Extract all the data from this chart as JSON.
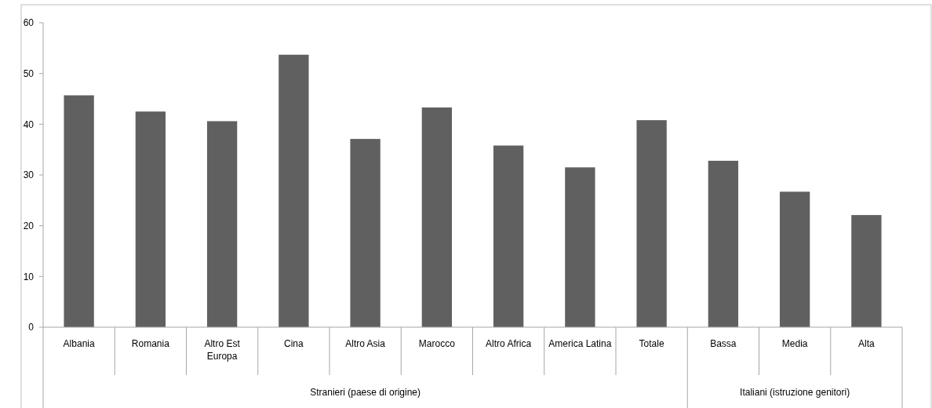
{
  "chart_data": {
    "type": "bar",
    "categories": [
      "Albania",
      "Romania",
      "Altro Est Europa",
      "Cina",
      "Altro Asia",
      "Marocco",
      "Altro Africa",
      "America Latina",
      "Totale",
      "Bassa",
      "Media",
      "Alta"
    ],
    "values": [
      45.7,
      42.5,
      40.6,
      53.7,
      37.1,
      43.3,
      35.8,
      31.5,
      40.8,
      32.8,
      26.7,
      22.1
    ],
    "color": "#606060",
    "ylim": [
      0,
      60
    ],
    "yticks": [
      0,
      10,
      20,
      30,
      40,
      50,
      60
    ],
    "grid": false,
    "annotations": [
      "Stranieri (paese di origine)",
      "Italiani (istruzione genitori)"
    ]
  }
}
